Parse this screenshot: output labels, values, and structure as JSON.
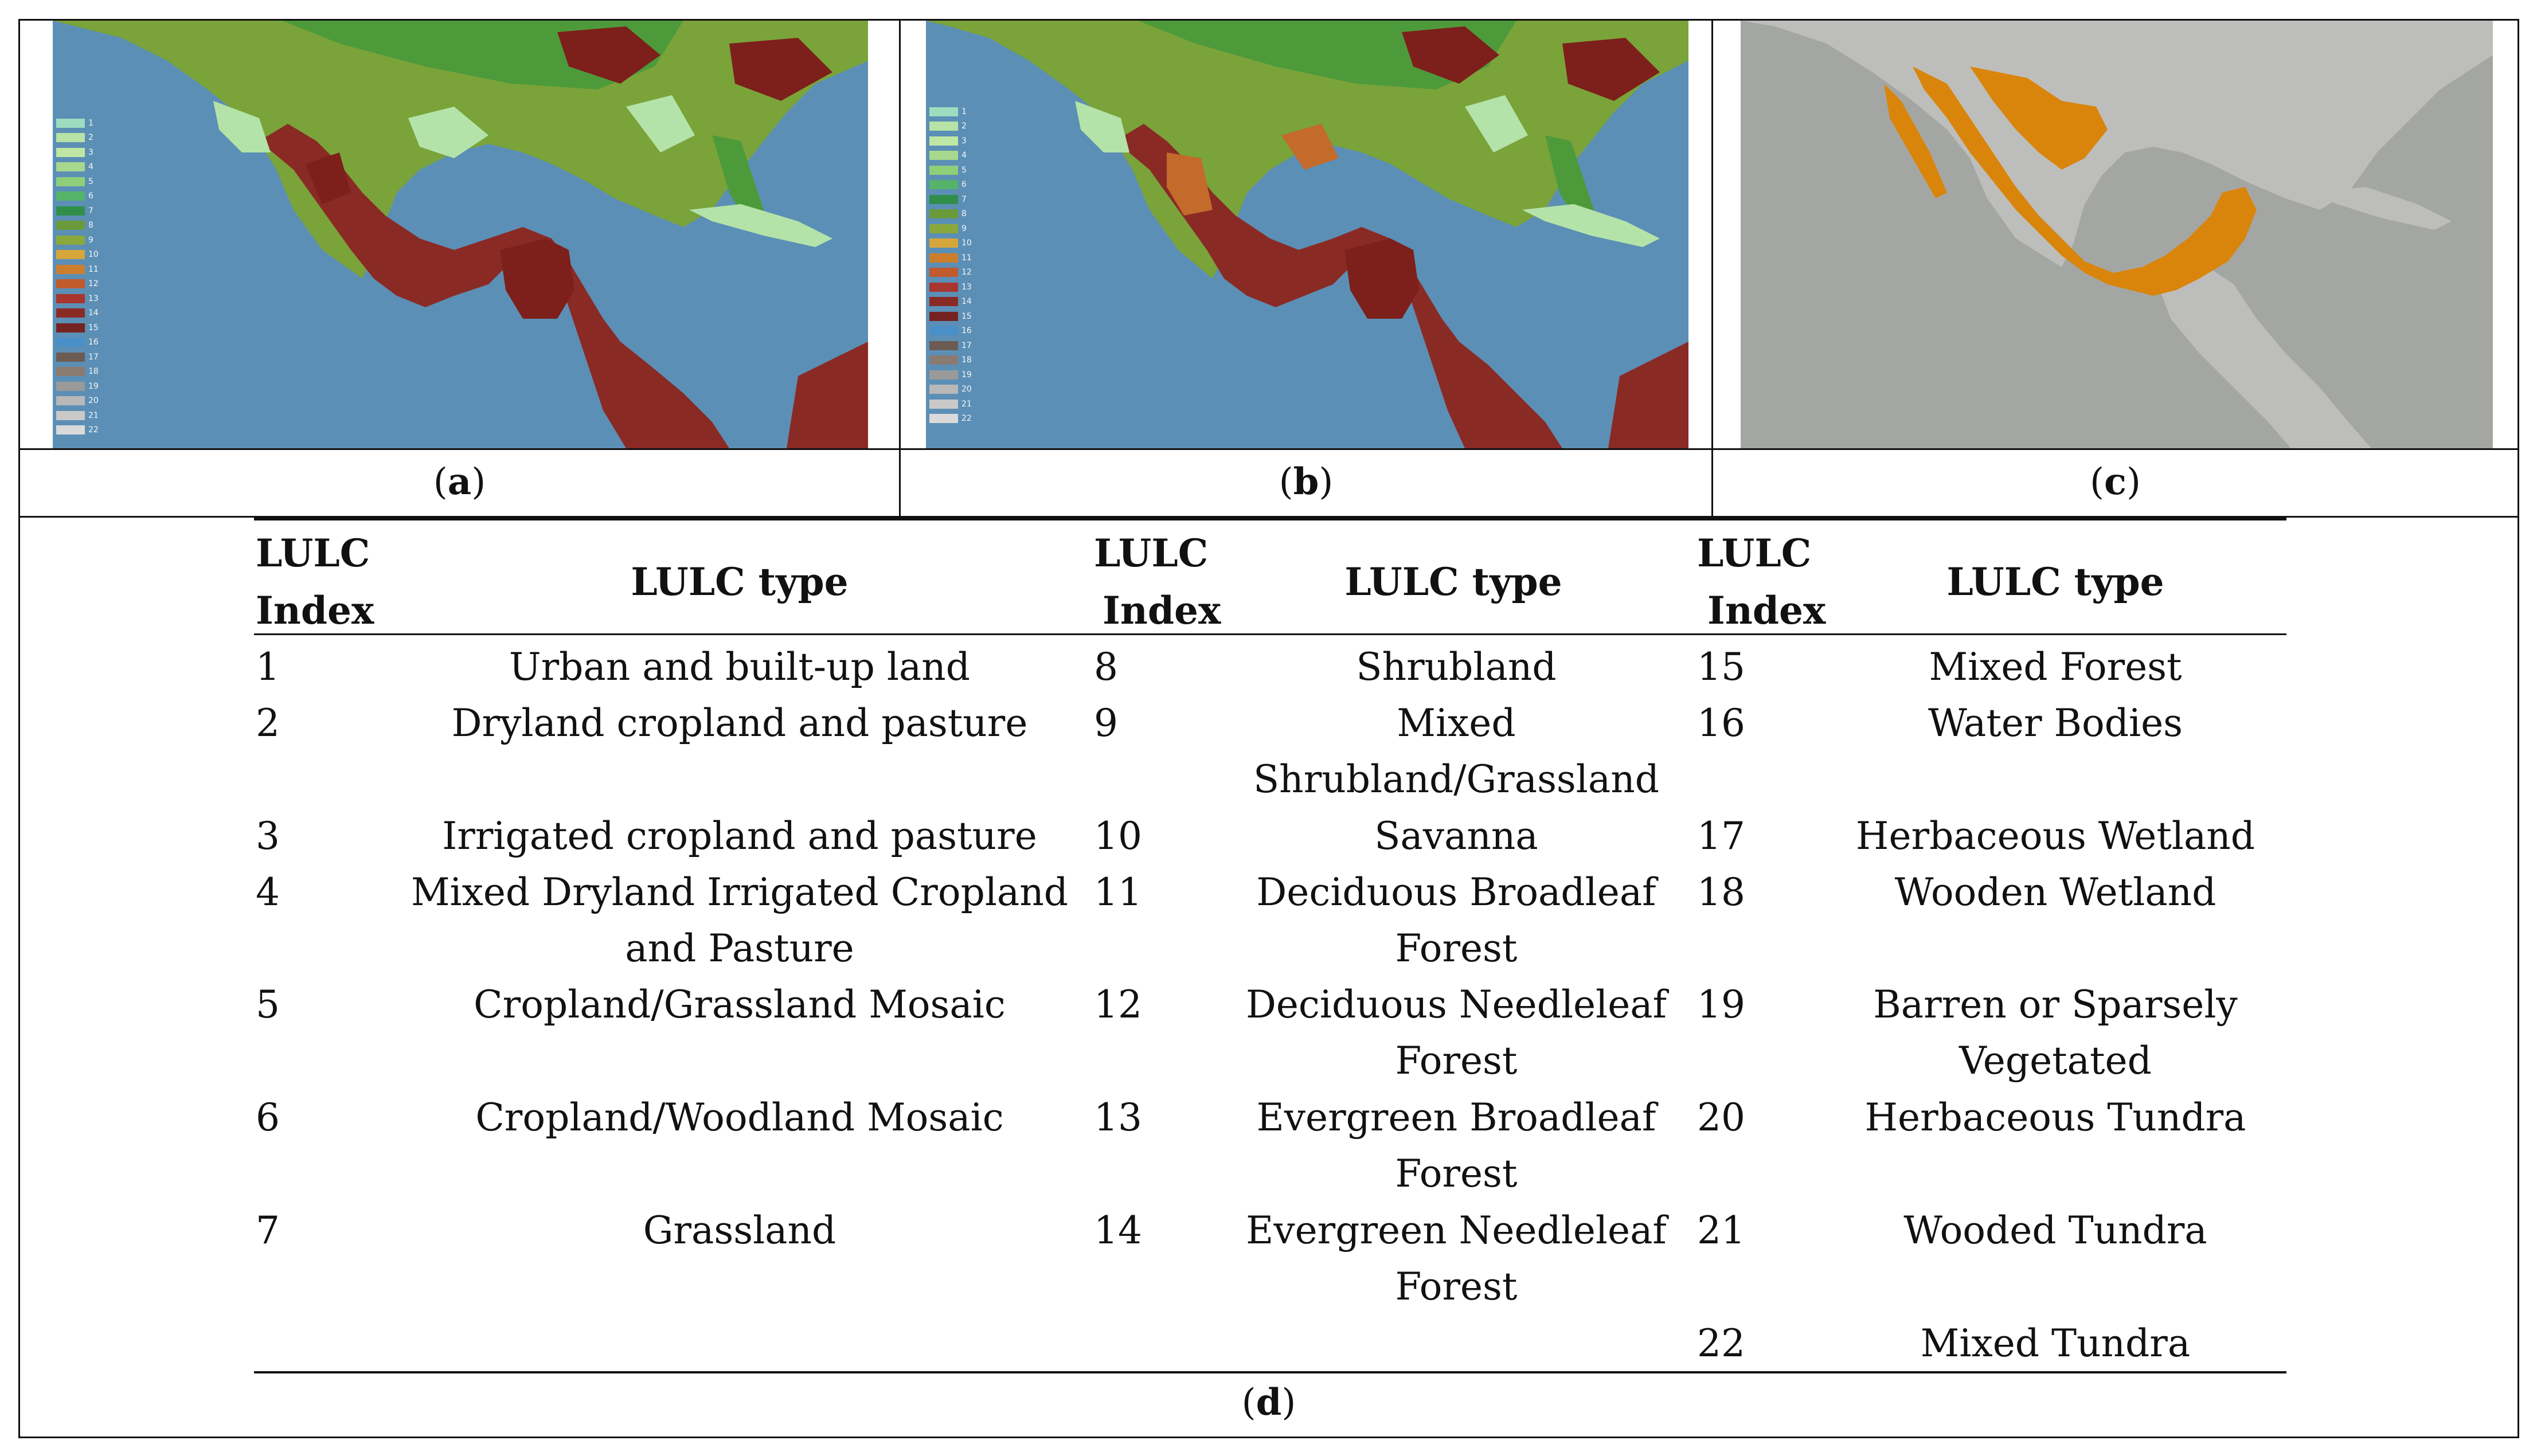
{
  "panels": [
    {
      "caption_prefix": "(",
      "caption_letter": "a",
      "caption_suffix": ")"
    },
    {
      "caption_prefix": "(",
      "caption_letter": "b",
      "caption_suffix": ")"
    },
    {
      "caption_prefix": "(",
      "caption_letter": "c",
      "caption_suffix": ")"
    }
  ],
  "legend_labels": [
    "1",
    "2",
    "3",
    "4",
    "5",
    "6",
    "7",
    "8",
    "9",
    "10",
    "11",
    "12",
    "13",
    "14",
    "15",
    "16",
    "17",
    "18",
    "19",
    "20",
    "21",
    "22"
  ],
  "legend_colors": [
    "#9edcc0",
    "#b7e3a7",
    "#bfe7a4",
    "#a8d88d",
    "#8fcf7a",
    "#55b36a",
    "#2f8f4a",
    "#6a9a3a",
    "#8aa83c",
    "#d7a63a",
    "#cd7e2c",
    "#c15a2c",
    "#a8352e",
    "#8a2a25",
    "#742321",
    "#4a90c8",
    "#6b5b52",
    "#8a7a70",
    "#9a9a9a",
    "#b8b8b8",
    "#c9c9c9",
    "#dadada"
  ],
  "map_colors": {
    "ocean": "#5c8fb5",
    "land_green": "#4d9a3a",
    "land_olive": "#7aa33a",
    "land_light": "#b4e3a9",
    "land_darkred": "#7d1f1a",
    "land_orange": "#c46a2a",
    "grey_background": "#a4a6a3",
    "grey_land": "#bdbebb",
    "highlight_orange": "#d9850b"
  },
  "table": {
    "header_index_line1": "LULC",
    "header_index_line2": "Index",
    "header_type": "LULC type",
    "col1": [
      {
        "index": "1",
        "type": "Urban and built-up land"
      },
      {
        "index": "2",
        "type": "Dryland cropland and pasture"
      },
      {
        "index": "3",
        "type": "Irrigated cropland and pasture"
      },
      {
        "index": "4",
        "type": "Mixed Dryland Irrigated Cropland\nand Pasture"
      },
      {
        "index": "5",
        "type": "Cropland/Grassland Mosaic"
      },
      {
        "index": "6",
        "type": "Cropland/Woodland Mosaic"
      },
      {
        "index": "7",
        "type": "Grassland"
      }
    ],
    "col2": [
      {
        "index": "8",
        "type": "Shrubland"
      },
      {
        "index": "9",
        "type": "Mixed\nShrubland/Grassland"
      },
      {
        "index": "10",
        "type": "Savanna"
      },
      {
        "index": "11",
        "type": "Deciduous Broadleaf\nForest"
      },
      {
        "index": "12",
        "type": "Deciduous Needleleaf\nForest"
      },
      {
        "index": "13",
        "type": "Evergreen Broadleaf\nForest"
      },
      {
        "index": "14",
        "type": "Evergreen Needleleaf\nForest"
      }
    ],
    "col3": [
      {
        "index": "15",
        "type": "Mixed Forest"
      },
      {
        "index": "16",
        "type": "Water Bodies"
      },
      {
        "index": "17",
        "type": "Herbaceous Wetland"
      },
      {
        "index": "18",
        "type": "Wooden Wetland"
      },
      {
        "index": "19",
        "type": "Barren or Sparsely\nVegetated"
      },
      {
        "index": "20",
        "type": "Herbaceous Tundra"
      },
      {
        "index": "21",
        "type": "Wooded Tundra"
      },
      {
        "index": "22",
        "type": "Mixed Tundra"
      }
    ],
    "caption_prefix": "(",
    "caption_letter": "d",
    "caption_suffix": ")"
  }
}
